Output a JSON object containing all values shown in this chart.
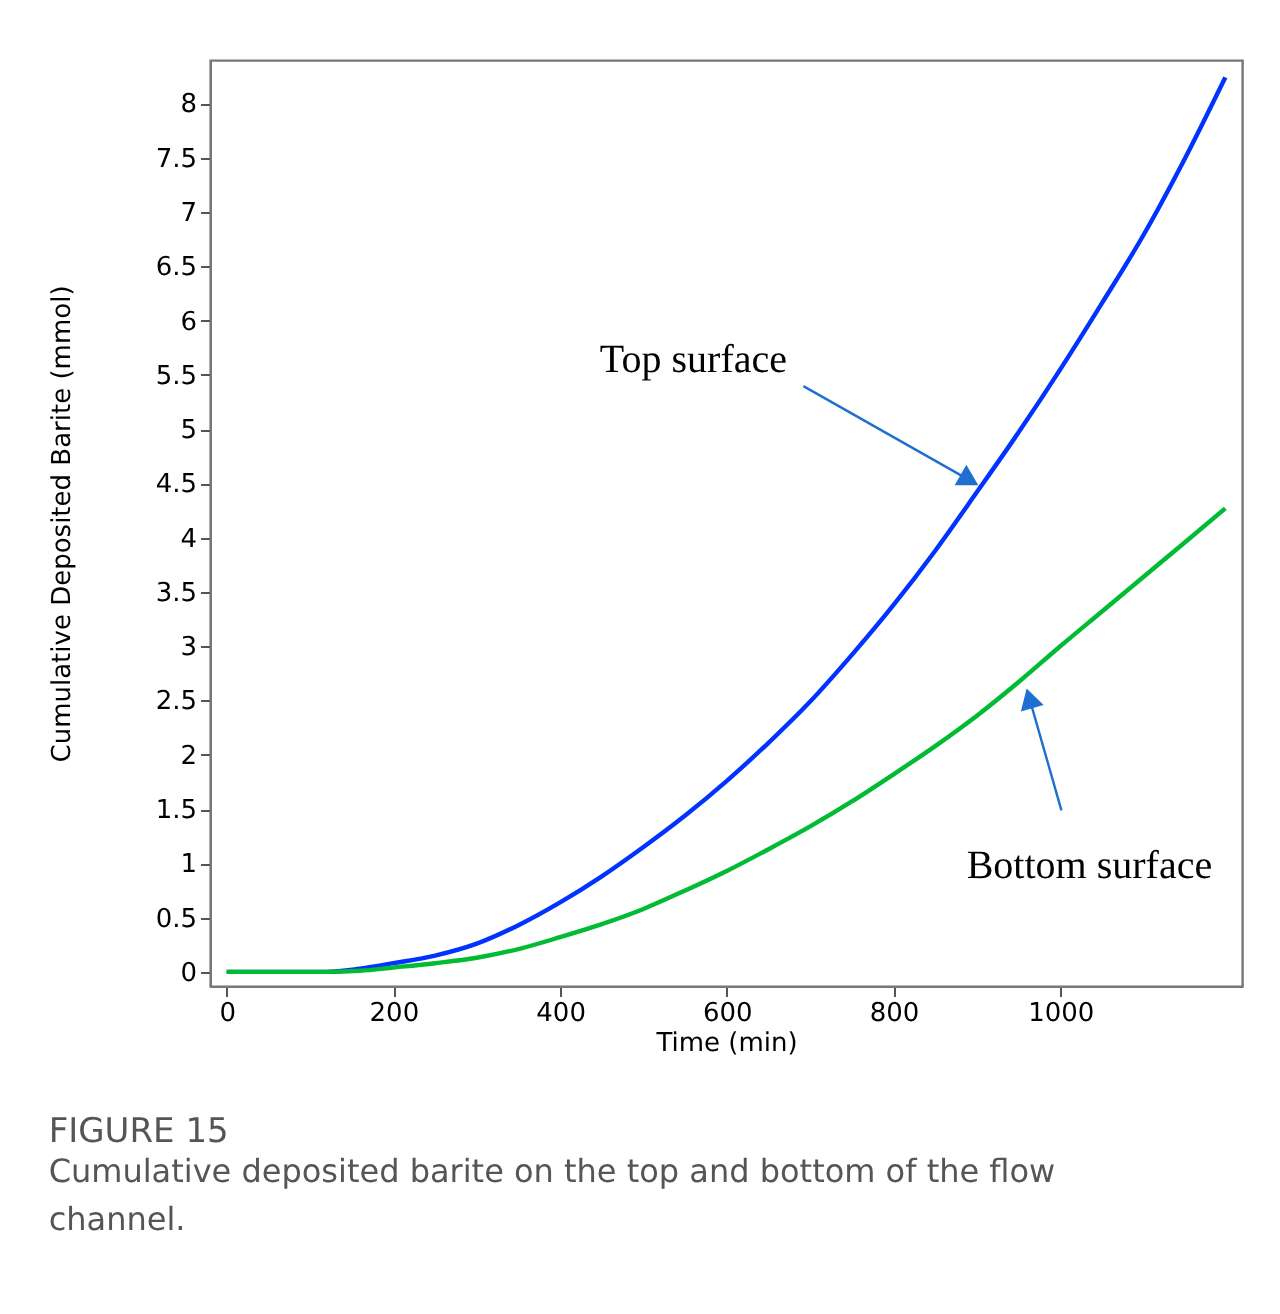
{
  "chart_data": {
    "type": "line",
    "title": "FIGURE 15",
    "subtitle": "Cumulative deposited barite on the top and bottom of the flow channel.",
    "xlabel": "Time (min)",
    "ylabel": "Cumulative Deposited Barite (mmol)",
    "xlim": [
      -20,
      1218
    ],
    "ylim": [
      -0.13,
      8.4
    ],
    "xticks": [
      0,
      200,
      400,
      600,
      800,
      1000
    ],
    "yticks": [
      0,
      0.5,
      1,
      1.5,
      2,
      2.5,
      3,
      3.5,
      4,
      4.5,
      5,
      5.5,
      6,
      6.5,
      7,
      7.5,
      8
    ],
    "grid": false,
    "legend": false,
    "marker": "none",
    "line_style": "solid",
    "x": [
      0,
      60,
      120,
      160,
      200,
      250,
      300,
      350,
      400,
      450,
      500,
      550,
      600,
      650,
      700,
      750,
      800,
      850,
      900,
      950,
      1000,
      1050,
      1100,
      1150,
      1198
    ],
    "series": [
      {
        "color": "#0033ff",
        "values": [
          0,
          0,
          0,
          0.03,
          0.08,
          0.15,
          0.26,
          0.43,
          0.64,
          0.88,
          1.15,
          1.44,
          1.76,
          2.11,
          2.49,
          2.92,
          3.38,
          3.88,
          4.42,
          4.97,
          5.55,
          6.16,
          6.79,
          7.5,
          8.24
        ]
      },
      {
        "color": "#00bb33",
        "values": [
          0,
          0,
          0,
          0.01,
          0.04,
          0.08,
          0.13,
          0.21,
          0.32,
          0.44,
          0.58,
          0.75,
          0.93,
          1.13,
          1.34,
          1.57,
          1.82,
          2.08,
          2.36,
          2.67,
          3.0,
          3.32,
          3.64,
          3.96,
          4.27
        ]
      }
    ],
    "annotations": [
      {
        "text": "Top surface",
        "x": 891,
        "y": 4.53
      },
      {
        "text": "Bottom surface",
        "x": 963,
        "y": 2.52
      }
    ]
  }
}
